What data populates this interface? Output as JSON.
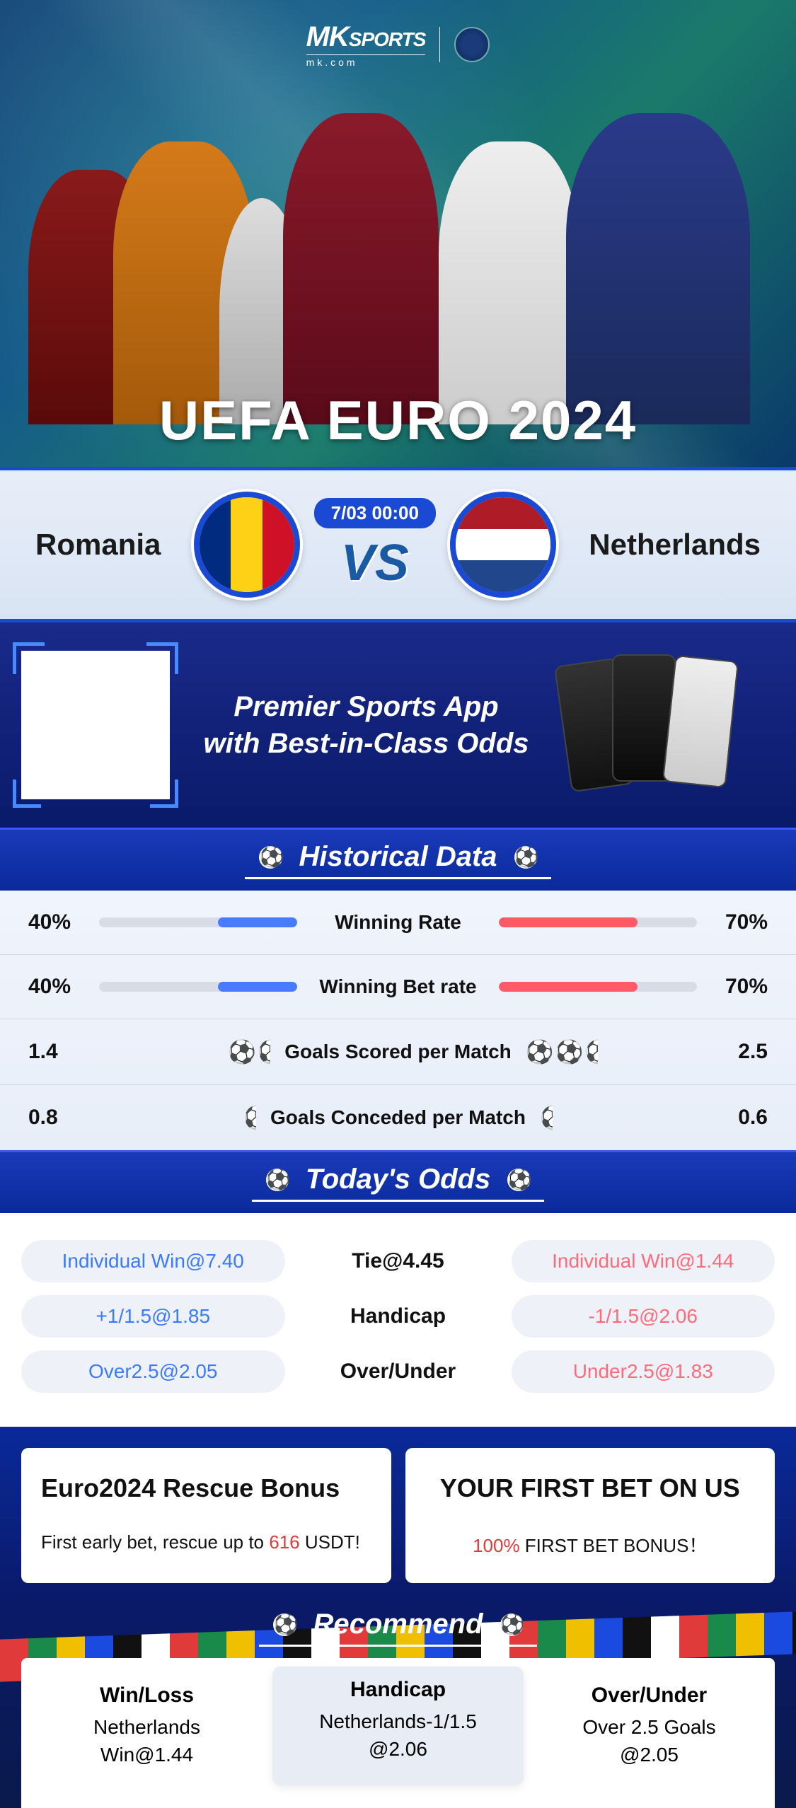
{
  "brand": {
    "name_prefix": "MK",
    "name_suffix": "SPORTS",
    "sub": "mk.com",
    "badge_text": ""
  },
  "hero": {
    "title": "UEFA EURO 2024"
  },
  "match": {
    "team_left": "Romania",
    "team_right": "Netherlands",
    "time": "7/03 00:00",
    "vs": "VS",
    "flag_left_colors": [
      "#002b7f",
      "#fcd116",
      "#ce1126"
    ],
    "flag_right_colors": [
      "#ae1c28",
      "#ffffff",
      "#21468b"
    ]
  },
  "promo": {
    "line1": "Premier Sports App",
    "line2": "with Best-in-Class Odds"
  },
  "historical": {
    "title": "Historical Data",
    "rows": [
      {
        "type": "bar",
        "label": "Winning Rate",
        "left_val": "40%",
        "left_pct": 40,
        "right_val": "70%",
        "right_pct": 70
      },
      {
        "type": "bar",
        "label": "Winning Bet rate",
        "left_val": "40%",
        "left_pct": 40,
        "right_val": "70%",
        "right_pct": 70
      },
      {
        "type": "balls",
        "label": "Goals Scored per Match",
        "left_val": "1.4",
        "left_balls": 1.4,
        "right_val": "2.5",
        "right_balls": 2.5
      },
      {
        "type": "balls",
        "label": "Goals Conceded per Match",
        "left_val": "0.8",
        "left_balls": 0.8,
        "right_val": "0.6",
        "right_balls": 0.6
      }
    ],
    "bar_left_color": "#4a7aff",
    "bar_right_color": "#ff5a6a",
    "bar_bg_color": "#d8dce6"
  },
  "odds": {
    "title": "Today's Odds",
    "rows": [
      {
        "left": "Individual Win@7.40",
        "center": "Tie@4.45",
        "right": "Individual Win@1.44"
      },
      {
        "left": "+1/1.5@1.85",
        "center": "Handicap",
        "right": "-1/1.5@2.06"
      },
      {
        "left": "Over2.5@2.05",
        "center": "Over/Under",
        "right": "Under2.5@1.83"
      }
    ],
    "pill_bg": "#eef2f8",
    "left_color": "#3a7aff",
    "right_color": "#ff6a7a"
  },
  "bonus": {
    "left": {
      "title": "Euro2024 Rescue Bonus",
      "body_pre": "First early bet, rescue up to ",
      "body_hl": "616",
      "body_post": " USDT!"
    },
    "right": {
      "title": "YOUR FIRST BET ON US",
      "body_hl": "100%",
      "body_post": " FIRST BET BONUS！"
    }
  },
  "recommend": {
    "title": "Recommend",
    "cols": [
      {
        "title": "Win/Loss",
        "line1": "Netherlands",
        "line2": "Win@1.44"
      },
      {
        "title": "Handicap",
        "line1": "Netherlands-1/1.5",
        "line2": "@2.06"
      },
      {
        "title": "Over/Under",
        "line1": "Over 2.5 Goals",
        "line2": "@2.05"
      }
    ]
  },
  "colors": {
    "primary_blue": "#1a4ad4",
    "deep_blue": "#0a1a6a",
    "accent_red": "#e03a3a"
  }
}
